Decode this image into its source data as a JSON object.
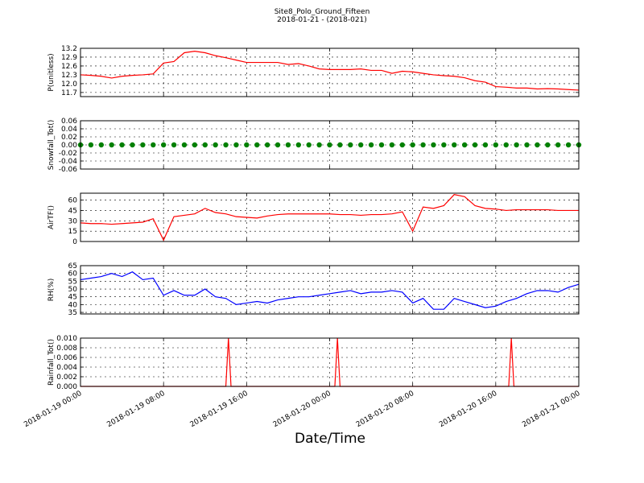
{
  "chart_data": {
    "type": "line",
    "title": "Site8_Polo_Ground_Fifteen",
    "subtitle": "2018-01-21 - (2018-021)",
    "xlabel": "Date/Time",
    "grid": true,
    "xlim": [
      "2018-01-19 00:00",
      "2018-01-21 00:00"
    ],
    "xticks": [
      "2018-01-19 00:00",
      "2018-01-19 08:00",
      "2018-01-19 16:00",
      "2018-01-20 00:00",
      "2018-01-20 08:00",
      "2018-01-20 16:00",
      "2018-01-21 00:00"
    ],
    "x": [
      "2018-01-19 00:00",
      "2018-01-19 01:00",
      "2018-01-19 02:00",
      "2018-01-19 03:00",
      "2018-01-19 04:00",
      "2018-01-19 05:00",
      "2018-01-19 06:00",
      "2018-01-19 07:00",
      "2018-01-19 08:00",
      "2018-01-19 09:00",
      "2018-01-19 10:00",
      "2018-01-19 11:00",
      "2018-01-19 12:00",
      "2018-01-19 13:00",
      "2018-01-19 14:00",
      "2018-01-19 15:00",
      "2018-01-19 16:00",
      "2018-01-19 17:00",
      "2018-01-19 18:00",
      "2018-01-19 19:00",
      "2018-01-19 20:00",
      "2018-01-19 21:00",
      "2018-01-19 22:00",
      "2018-01-19 23:00",
      "2018-01-20 00:00",
      "2018-01-20 01:00",
      "2018-01-20 02:00",
      "2018-01-20 03:00",
      "2018-01-20 04:00",
      "2018-01-20 05:00",
      "2018-01-20 06:00",
      "2018-01-20 07:00",
      "2018-01-20 08:00",
      "2018-01-20 09:00",
      "2018-01-20 10:00",
      "2018-01-20 11:00",
      "2018-01-20 12:00",
      "2018-01-20 13:00",
      "2018-01-20 14:00",
      "2018-01-20 15:00",
      "2018-01-20 16:00",
      "2018-01-20 17:00",
      "2018-01-20 18:00",
      "2018-01-20 19:00",
      "2018-01-20 20:00",
      "2018-01-20 21:00",
      "2018-01-20 22:00",
      "2018-01-20 23:00",
      "2018-01-21 00:00"
    ],
    "panels": [
      {
        "type": "line",
        "ylabel": "P(unitless)",
        "ylim": [
          11.56,
          13.2
        ],
        "yticks": [
          11.7,
          {
            "value": 12,
            "label": "12.0"
          },
          12.3,
          12.6,
          12.9,
          13.2
        ],
        "series": [
          {
            "color": "#ff0000",
            "values": [
              12.3,
              12.28,
              12.25,
              12.19,
              12.25,
              12.28,
              12.3,
              12.33,
              12.7,
              12.75,
              13.05,
              13.1,
              13.05,
              12.95,
              12.88,
              12.8,
              12.72,
              12.72,
              12.72,
              12.72,
              12.65,
              12.68,
              12.6,
              12.5,
              12.48,
              12.48,
              12.48,
              12.5,
              12.45,
              12.45,
              12.35,
              12.42,
              12.4,
              12.35,
              12.3,
              12.27,
              12.25,
              12.2,
              12.1,
              12.05,
              11.9,
              11.88,
              11.85,
              11.85,
              11.82,
              11.83,
              11.82,
              11.8,
              11.78
            ]
          }
        ]
      },
      {
        "type": "scatter",
        "ylabel": "Snowfall_Tot()",
        "ylim": [
          -0.06,
          0.06
        ],
        "yticks": [
          -0.06,
          -0.04,
          -0.02,
          {
            "value": 0,
            "label": "0.00"
          },
          0.02,
          0.04,
          0.06
        ],
        "series": [
          {
            "color": "#008000",
            "values": [
              0,
              0,
              0,
              0,
              0,
              0,
              0,
              0,
              0,
              0,
              0,
              0,
              0,
              0,
              0,
              0,
              0,
              0,
              0,
              0,
              0,
              0,
              0,
              0,
              0,
              0,
              0,
              0,
              0,
              0,
              0,
              0,
              0,
              0,
              0,
              0,
              0,
              0,
              0,
              0,
              0,
              0,
              0,
              0,
              0,
              0,
              0,
              0,
              0
            ]
          }
        ]
      },
      {
        "type": "line",
        "ylabel": "AirTF()",
        "ylim": [
          0,
          70
        ],
        "yticks": [
          0,
          15,
          30,
          45,
          60
        ],
        "series": [
          {
            "color": "#ff0000",
            "values": [
              27,
              26,
              26,
              25,
              26,
              27,
              28,
              33,
              2,
              36,
              38,
              40,
              48,
              42,
              40,
              36,
              35,
              34,
              37,
              39,
              40,
              40,
              40,
              40,
              40,
              39,
              39,
              38,
              39,
              39,
              40,
              43,
              15,
              50,
              48,
              52,
              68,
              65,
              52,
              48,
              47,
              45,
              46,
              46,
              46,
              46,
              45,
              45,
              45
            ]
          }
        ]
      },
      {
        "type": "line",
        "ylabel": "RH(%)",
        "ylim": [
          34,
          65
        ],
        "yticks": [
          35,
          40,
          45,
          50,
          55,
          60,
          65
        ],
        "series": [
          {
            "color": "#0000ff",
            "values": [
              56,
              57,
              58,
              60,
              58,
              61,
              56,
              57,
              46,
              49,
              46,
              46,
              50,
              45,
              44,
              40,
              41,
              42,
              41,
              43,
              44,
              45,
              45,
              46,
              47,
              48,
              49,
              47,
              48,
              48,
              49,
              48,
              41,
              44,
              37,
              37,
              44,
              42,
              40,
              38,
              39,
              42,
              44,
              47,
              49,
              49,
              48,
              51,
              53
            ]
          }
        ]
      },
      {
        "type": "line",
        "ylabel": "Rainfall_Tot()",
        "ylim": [
          0,
          0.01
        ],
        "yticks": [
          {
            "value": 0,
            "label": "0.000"
          },
          {
            "value": 0.002,
            "label": "0.002"
          },
          {
            "value": 0.004,
            "label": "0.004"
          },
          {
            "value": 0.006,
            "label": "0.006"
          },
          {
            "value": 0.008,
            "label": "0.008"
          },
          {
            "value": 0.01,
            "label": "0.010"
          }
        ],
        "x": [
          "2018-01-19 00:00",
          "2018-01-19 14:00",
          "2018-01-19 14:15",
          "2018-01-19 14:30",
          "2018-01-20 00:30",
          "2018-01-20 00:45",
          "2018-01-20 01:00",
          "2018-01-20 17:15",
          "2018-01-20 17:30",
          "2018-01-20 17:45",
          "2018-01-21 00:00"
        ],
        "series": [
          {
            "color": "#ff0000",
            "values": [
              0,
              0,
              0.01,
              0,
              0,
              0.01,
              0,
              0,
              0.01,
              0,
              0
            ]
          }
        ]
      }
    ]
  }
}
